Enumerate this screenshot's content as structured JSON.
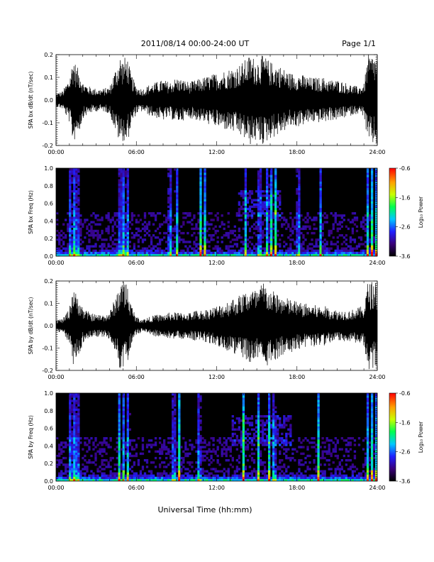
{
  "header": {
    "title": "2011/08/14  00:00-24:00 UT",
    "page": "Page 1/1"
  },
  "xaxis": {
    "label": "Universal Time (hh:mm)",
    "ticks": [
      "00:00",
      "06:00",
      "12:00",
      "18:00",
      "24:00"
    ],
    "range_hours": [
      0,
      24
    ]
  },
  "colors": {
    "trace": "#000000",
    "background": "#000000"
  },
  "chart_data": [
    {
      "type": "line",
      "ylabel": "SPA bx dB/dt (nT/sec)",
      "ylim": [
        -0.2,
        0.2
      ],
      "yticks": [
        "-0.2",
        "-0.1",
        "0.0",
        "0.1",
        "0.2"
      ],
      "x_hours": [
        0,
        0.5,
        1,
        1.3,
        1.5,
        1.8,
        2,
        2.5,
        3,
        3.5,
        4,
        4.5,
        4.8,
        5,
        5.3,
        5.6,
        6,
        6.5,
        7,
        7.5,
        8,
        8.5,
        9,
        9.5,
        10,
        10.5,
        11,
        11.5,
        12,
        12.5,
        13,
        13.5,
        14,
        14.5,
        15,
        15.5,
        16,
        16.5,
        17,
        17.5,
        18,
        18.5,
        19,
        19.5,
        20,
        20.5,
        21,
        21.5,
        22,
        22.5,
        23,
        23.3,
        23.6,
        24
      ],
      "amplitude": [
        0.03,
        0.04,
        0.1,
        0.2,
        0.15,
        0.13,
        0.08,
        0.06,
        0.05,
        0.05,
        0.06,
        0.15,
        0.2,
        0.18,
        0.2,
        0.12,
        0.06,
        0.05,
        0.07,
        0.08,
        0.09,
        0.08,
        0.1,
        0.09,
        0.08,
        0.09,
        0.1,
        0.11,
        0.12,
        0.13,
        0.14,
        0.15,
        0.17,
        0.2,
        0.18,
        0.2,
        0.17,
        0.16,
        0.14,
        0.12,
        0.12,
        0.11,
        0.1,
        0.1,
        0.1,
        0.09,
        0.09,
        0.08,
        0.07,
        0.06,
        0.07,
        0.2,
        0.2,
        0.2
      ]
    },
    {
      "type": "heatmap",
      "ylabel": "SPA bx Freq (Hz)",
      "ylim": [
        0.0,
        1.0
      ],
      "yticks": [
        "0.0",
        "0.2",
        "0.4",
        "0.6",
        "0.8",
        "1.0"
      ],
      "colorbar": {
        "label": "Log₁₀ Power",
        "ticks": [
          "-0.6",
          "-1.6",
          "-2.6",
          "-3.6"
        ],
        "range": [
          -3.6,
          -0.6
        ]
      },
      "bursts_hours": [
        1.1,
        1.4,
        1.6,
        4.8,
        5.0,
        5.3,
        8.5,
        9.0,
        10.8,
        11.1,
        14.2,
        15.2,
        15.8,
        16.1,
        16.4,
        18.1,
        19.8,
        23.3,
        23.6,
        23.9
      ],
      "patch": {
        "x_hours": [
          13.6,
          16.8
        ],
        "freq_hz": [
          0.45,
          0.75
        ]
      }
    },
    {
      "type": "line",
      "ylabel": "SPA by dB/dt (nT/sec)",
      "ylim": [
        -0.2,
        0.2
      ],
      "yticks": [
        "-0.2",
        "-0.1",
        "0.0",
        "0.1",
        "0.2"
      ],
      "x_hours": [
        0,
        0.5,
        1,
        1.3,
        1.5,
        1.8,
        2,
        2.5,
        3,
        3.5,
        4,
        4.5,
        4.8,
        5,
        5.3,
        5.6,
        6,
        6.5,
        7,
        7.5,
        8,
        8.5,
        9,
        9.5,
        10,
        10.5,
        11,
        11.5,
        12,
        12.5,
        13,
        13.5,
        14,
        14.5,
        15,
        15.5,
        16,
        16.5,
        17,
        17.5,
        18,
        18.5,
        19,
        19.5,
        20,
        20.5,
        21,
        21.5,
        22,
        22.5,
        23,
        23.3,
        23.6,
        24
      ],
      "amplitude": [
        0.03,
        0.03,
        0.08,
        0.2,
        0.14,
        0.12,
        0.08,
        0.06,
        0.05,
        0.05,
        0.06,
        0.14,
        0.2,
        0.2,
        0.2,
        0.1,
        0.04,
        0.03,
        0.04,
        0.05,
        0.05,
        0.06,
        0.06,
        0.06,
        0.06,
        0.07,
        0.07,
        0.08,
        0.09,
        0.1,
        0.12,
        0.13,
        0.15,
        0.17,
        0.16,
        0.2,
        0.16,
        0.15,
        0.13,
        0.12,
        0.11,
        0.1,
        0.1,
        0.09,
        0.09,
        0.08,
        0.07,
        0.07,
        0.07,
        0.08,
        0.09,
        0.2,
        0.2,
        0.2
      ]
    },
    {
      "type": "heatmap",
      "ylabel": "SPA by Freq (Hz)",
      "ylim": [
        0.0,
        1.0
      ],
      "yticks": [
        "0.0",
        "0.2",
        "0.4",
        "0.6",
        "0.8",
        "1.0"
      ],
      "colorbar": {
        "label": "Log₁₀ Power",
        "ticks": [
          "-0.6",
          "-1.6",
          "-2.6",
          "-3.6"
        ],
        "range": [
          -3.6,
          -0.6
        ]
      },
      "bursts_hours": [
        1.1,
        1.4,
        1.6,
        4.7,
        5.0,
        5.4,
        8.8,
        9.2,
        10.7,
        14.0,
        15.1,
        15.9,
        16.3,
        19.6,
        23.3,
        23.6,
        23.9
      ],
      "patch": {
        "x_hours": [
          13.2,
          17.6
        ],
        "freq_hz": [
          0.4,
          0.75
        ]
      }
    }
  ]
}
